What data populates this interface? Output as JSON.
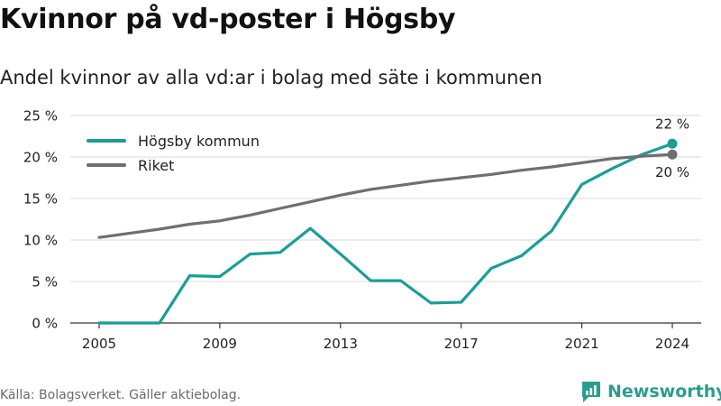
{
  "title": "Kvinnor på vd-poster i Högsby",
  "subtitle": "Andel kvinnor av alla vd:ar i bolag med säte i kommunen",
  "source": "Källa: Bolagsverket. Gäller aktiebolag.",
  "brand": {
    "name": "Newsworthy",
    "icon": "newsworthy-logo-icon",
    "color": "#2a9d92"
  },
  "chart_data": {
    "type": "line",
    "x": [
      2005,
      2006,
      2007,
      2008,
      2009,
      2010,
      2011,
      2012,
      2013,
      2014,
      2015,
      2016,
      2017,
      2018,
      2019,
      2020,
      2021,
      2022,
      2023,
      2024
    ],
    "x_ticks": [
      "2005",
      "2009",
      "2013",
      "2017",
      "2021",
      "2024"
    ],
    "y_ticks": [
      "0 %",
      "5 %",
      "10 %",
      "15 %",
      "20 %",
      "25 %"
    ],
    "ylim": [
      0,
      25
    ],
    "grid": true,
    "legend_position": "top-left",
    "series": [
      {
        "name": "Högsby kommun",
        "color": "#1a9e96",
        "values": [
          0.0,
          0.0,
          0.0,
          5.7,
          5.6,
          8.3,
          8.5,
          11.4,
          8.3,
          5.1,
          5.1,
          2.4,
          2.5,
          6.6,
          8.1,
          11.1,
          16.7,
          18.6,
          20.3,
          21.6
        ],
        "end_label": "22 %"
      },
      {
        "name": "Riket",
        "color": "#6e6e73",
        "values": [
          10.3,
          10.8,
          11.3,
          11.9,
          12.3,
          13.0,
          13.8,
          14.6,
          15.4,
          16.1,
          16.6,
          17.1,
          17.5,
          17.9,
          18.4,
          18.8,
          19.3,
          19.8,
          20.1,
          20.3
        ],
        "end_label": "20 %"
      }
    ]
  }
}
